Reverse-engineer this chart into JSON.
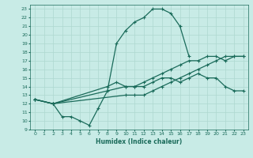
{
  "xlabel": "Humidex (Indice chaleur)",
  "background_color": "#c8ebe6",
  "line_color": "#1a6b5a",
  "grid_color": "#aed8d0",
  "xlim": [
    -0.5,
    23.5
  ],
  "ylim": [
    9,
    23.5
  ],
  "xticks": [
    0,
    1,
    2,
    3,
    4,
    5,
    6,
    7,
    8,
    9,
    10,
    11,
    12,
    13,
    14,
    15,
    16,
    17,
    18,
    19,
    20,
    21,
    22,
    23
  ],
  "yticks": [
    9,
    10,
    11,
    12,
    13,
    14,
    15,
    16,
    17,
    18,
    19,
    20,
    21,
    22,
    23
  ],
  "series1_x": [
    0,
    2,
    3,
    4,
    5,
    6,
    7,
    8,
    9,
    10,
    11,
    12,
    13,
    14,
    15,
    16,
    17
  ],
  "series1_y": [
    12.5,
    12.0,
    10.5,
    10.5,
    10.0,
    9.5,
    11.5,
    13.5,
    19.0,
    20.5,
    21.5,
    22.0,
    23.0,
    23.0,
    22.5,
    21.0,
    17.5
  ],
  "series2_x": [
    0,
    2,
    10,
    11,
    12,
    13,
    14,
    15,
    16,
    17,
    18,
    19,
    20,
    21,
    22,
    23
  ],
  "series2_y": [
    12.5,
    12.0,
    14.0,
    14.0,
    14.5,
    15.0,
    15.5,
    16.0,
    16.5,
    17.0,
    17.0,
    17.5,
    17.5,
    17.0,
    17.5,
    17.5
  ],
  "series3_x": [
    0,
    2,
    8,
    9,
    10,
    11,
    12,
    13,
    14,
    15,
    16,
    17,
    18,
    19,
    20,
    21,
    22,
    23
  ],
  "series3_y": [
    12.5,
    12.0,
    14.0,
    14.5,
    14.0,
    14.0,
    14.0,
    14.5,
    15.0,
    15.0,
    14.5,
    15.0,
    15.5,
    15.0,
    15.0,
    14.0,
    13.5,
    13.5
  ],
  "series4_x": [
    0,
    2,
    10,
    11,
    12,
    13,
    14,
    15,
    16,
    17,
    18,
    19,
    20,
    21,
    22,
    23
  ],
  "series4_y": [
    12.5,
    12.0,
    13.0,
    13.0,
    13.0,
    13.5,
    14.0,
    14.5,
    15.0,
    15.5,
    16.0,
    16.5,
    17.0,
    17.5,
    17.5,
    17.5
  ]
}
